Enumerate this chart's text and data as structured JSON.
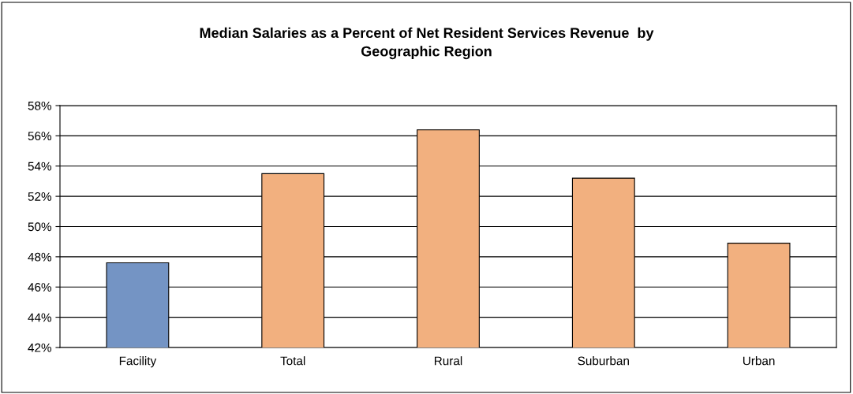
{
  "chart_data": {
    "type": "bar",
    "title": "Median Salaries as a Percent of Net Resident Services Revenue  by\nGeographic Region",
    "categories": [
      "Facility",
      "Total",
      "Rural",
      "Suburban",
      "Urban"
    ],
    "values": [
      47.6,
      53.5,
      56.4,
      53.2,
      48.9
    ],
    "colors": [
      "#7494c4",
      "#f2b07f",
      "#f2b07f",
      "#f2b07f",
      "#f2b07f"
    ],
    "ylim": [
      42,
      58
    ],
    "yticks": [
      {
        "value": 42,
        "label": "42%"
      },
      {
        "value": 44,
        "label": "44%"
      },
      {
        "value": 46,
        "label": "46%"
      },
      {
        "value": 48,
        "label": "48%"
      },
      {
        "value": 50,
        "label": "50%"
      },
      {
        "value": 52,
        "label": "52%"
      },
      {
        "value": 54,
        "label": "54%"
      },
      {
        "value": 56,
        "label": "56%"
      },
      {
        "value": 58,
        "label": "58%"
      }
    ],
    "grid": "y",
    "legend": false
  }
}
